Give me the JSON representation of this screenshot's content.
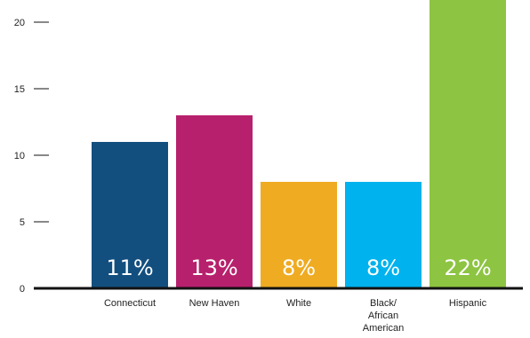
{
  "chart_data": {
    "type": "bar",
    "title": "",
    "xlabel": "",
    "ylabel": "",
    "ylim": [
      0,
      22
    ],
    "yticks": [
      0,
      5,
      10,
      15,
      20
    ],
    "grid": false,
    "categories": [
      [
        "Connecticut"
      ],
      [
        "New Haven"
      ],
      [
        "White"
      ],
      [
        "Black/",
        "African",
        "American"
      ],
      [
        "Hispanic"
      ]
    ],
    "values": [
      11,
      13,
      8,
      8,
      22
    ],
    "data_labels": [
      "11%",
      "13%",
      "8%",
      "8%",
      "22%"
    ],
    "colors": [
      "#134f7e",
      "#b7206c",
      "#efab22",
      "#00b2ed",
      "#8dc442"
    ]
  }
}
